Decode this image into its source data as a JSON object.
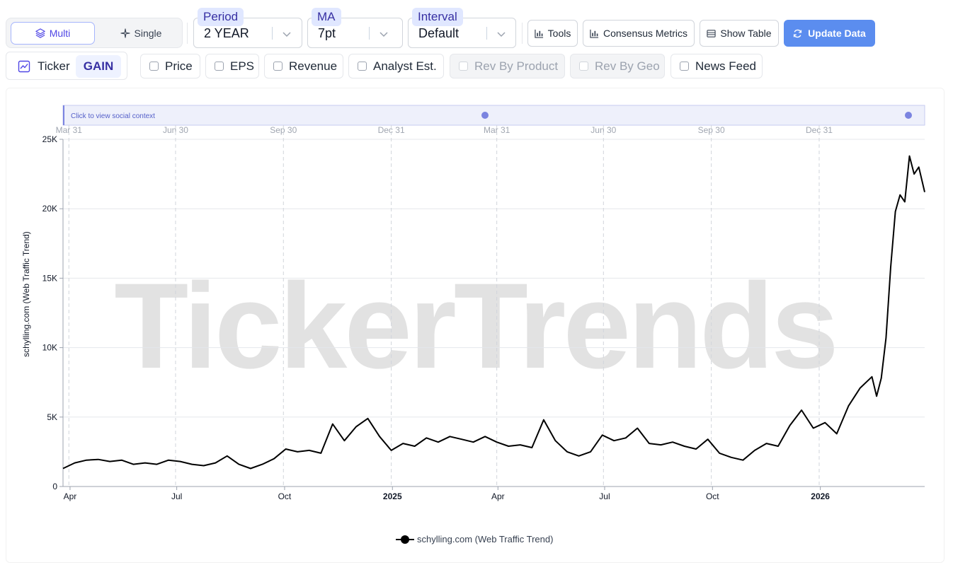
{
  "toolbar": {
    "mode": {
      "multi_label": "Multi",
      "single_label": "Single"
    },
    "period": {
      "tag": "Period",
      "value": "2 YEAR"
    },
    "ma": {
      "tag": "MA",
      "value": "7pt"
    },
    "interval": {
      "tag": "Interval",
      "value": "Default"
    },
    "tools_label": "Tools",
    "consensus_label": "Consensus Metrics",
    "show_table_label": "Show Table",
    "update_label": "Update Data"
  },
  "ticker": {
    "label": "Ticker",
    "value": "GAIN"
  },
  "overlays": [
    {
      "label": "Price",
      "checked": false,
      "disabled": false
    },
    {
      "label": "EPS",
      "checked": false,
      "disabled": false
    },
    {
      "label": "Revenue",
      "checked": false,
      "disabled": false
    },
    {
      "label": "Analyst Est.",
      "checked": false,
      "disabled": false
    },
    {
      "label": "Rev By Product",
      "checked": false,
      "disabled": true
    },
    {
      "label": "Rev By Geo",
      "checked": false,
      "disabled": true
    },
    {
      "label": "News Feed",
      "checked": false,
      "disabled": false
    }
  ],
  "colors": {
    "accent": "#5b8def",
    "line": "#000000",
    "social_bar": "#eef0fb",
    "social_dot": "#7b84e0",
    "watermark": "#e2e2e2"
  },
  "chart_data": {
    "type": "line",
    "watermark": "TickerTrends",
    "social_bar_label": "Click to view social context",
    "top_ticks": [
      "Mar 31",
      "Jun 30",
      "Sep 30",
      "Dec 31",
      "Mar 31",
      "Jun 30",
      "Sep 30",
      "Dec 31"
    ],
    "x_ticks": [
      {
        "label": "Apr",
        "date": "2024-04-01",
        "bold": false
      },
      {
        "label": "Jul",
        "date": "2024-07-01",
        "bold": false
      },
      {
        "label": "Oct",
        "date": "2024-10-01",
        "bold": false
      },
      {
        "label": "2025",
        "date": "2025-01-01",
        "bold": true
      },
      {
        "label": "Apr",
        "date": "2025-04-01",
        "bold": false
      },
      {
        "label": "Jul",
        "date": "2025-07-01",
        "bold": false
      },
      {
        "label": "Oct",
        "date": "2025-10-01",
        "bold": false
      },
      {
        "label": "2026",
        "date": "2026-01-01",
        "bold": true
      }
    ],
    "gridline_dates": [
      "2024-03-31",
      "2024-06-30",
      "2024-09-30",
      "2024-12-31",
      "2025-03-31",
      "2025-06-30",
      "2025-09-30",
      "2025-12-31"
    ],
    "y_ticks": [
      {
        "label": "0",
        "value": 0
      },
      {
        "label": "5K",
        "value": 5000
      },
      {
        "label": "10K",
        "value": 10000
      },
      {
        "label": "15K",
        "value": 15000
      },
      {
        "label": "20K",
        "value": 20000
      },
      {
        "label": "25K",
        "value": 25000
      }
    ],
    "ylim": [
      0,
      25000
    ],
    "xlim": [
      "2024-03-26",
      "2026-03-31"
    ],
    "ylabel": "schylling.com  (Web Traffic Trend)",
    "grid": true,
    "legend_position": "bottom-center",
    "series": [
      {
        "name": "schylling.com  (Web Traffic Trend)",
        "points": [
          [
            "2024-03-26",
            1300
          ],
          [
            "2024-04-05",
            1700
          ],
          [
            "2024-04-15",
            1900
          ],
          [
            "2024-04-25",
            1950
          ],
          [
            "2024-05-05",
            1800
          ],
          [
            "2024-05-15",
            1900
          ],
          [
            "2024-05-25",
            1600
          ],
          [
            "2024-06-04",
            1700
          ],
          [
            "2024-06-14",
            1600
          ],
          [
            "2024-06-24",
            1900
          ],
          [
            "2024-07-04",
            1800
          ],
          [
            "2024-07-14",
            1600
          ],
          [
            "2024-07-24",
            1500
          ],
          [
            "2024-08-03",
            1700
          ],
          [
            "2024-08-13",
            2200
          ],
          [
            "2024-08-23",
            1600
          ],
          [
            "2024-09-02",
            1300
          ],
          [
            "2024-09-12",
            1600
          ],
          [
            "2024-09-22",
            2000
          ],
          [
            "2024-10-02",
            2700
          ],
          [
            "2024-10-12",
            2500
          ],
          [
            "2024-10-22",
            2600
          ],
          [
            "2024-11-01",
            2400
          ],
          [
            "2024-11-11",
            4500
          ],
          [
            "2024-11-21",
            3300
          ],
          [
            "2024-12-01",
            4300
          ],
          [
            "2024-12-11",
            4900
          ],
          [
            "2024-12-21",
            3600
          ],
          [
            "2024-12-31",
            2600
          ],
          [
            "2025-01-10",
            3100
          ],
          [
            "2025-01-20",
            2900
          ],
          [
            "2025-01-30",
            3500
          ],
          [
            "2025-02-09",
            3200
          ],
          [
            "2025-02-19",
            3600
          ],
          [
            "2025-03-01",
            3400
          ],
          [
            "2025-03-11",
            3200
          ],
          [
            "2025-03-21",
            3600
          ],
          [
            "2025-03-31",
            3200
          ],
          [
            "2025-04-10",
            2900
          ],
          [
            "2025-04-20",
            3000
          ],
          [
            "2025-04-30",
            2800
          ],
          [
            "2025-05-10",
            4800
          ],
          [
            "2025-05-20",
            3300
          ],
          [
            "2025-05-30",
            2500
          ],
          [
            "2025-06-09",
            2200
          ],
          [
            "2025-06-19",
            2500
          ],
          [
            "2025-06-29",
            3700
          ],
          [
            "2025-07-09",
            3300
          ],
          [
            "2025-07-19",
            3500
          ],
          [
            "2025-07-29",
            4200
          ],
          [
            "2025-08-08",
            3100
          ],
          [
            "2025-08-18",
            3000
          ],
          [
            "2025-08-28",
            3200
          ],
          [
            "2025-09-07",
            2900
          ],
          [
            "2025-09-17",
            2700
          ],
          [
            "2025-09-27",
            3400
          ],
          [
            "2025-10-07",
            2400
          ],
          [
            "2025-10-17",
            2100
          ],
          [
            "2025-10-27",
            1900
          ],
          [
            "2025-11-06",
            2600
          ],
          [
            "2025-11-16",
            3100
          ],
          [
            "2025-11-26",
            2900
          ],
          [
            "2025-12-06",
            4400
          ],
          [
            "2025-12-16",
            5500
          ],
          [
            "2025-12-26",
            4200
          ],
          [
            "2026-01-05",
            4600
          ],
          [
            "2026-01-15",
            3800
          ],
          [
            "2026-01-25",
            5800
          ],
          [
            "2026-02-04",
            7100
          ],
          [
            "2026-02-14",
            7900
          ],
          [
            "2026-02-18",
            6500
          ],
          [
            "2026-02-22",
            7800
          ],
          [
            "2026-02-26",
            10700
          ],
          [
            "2026-03-02",
            15800
          ],
          [
            "2026-03-06",
            19800
          ],
          [
            "2026-03-10",
            21000
          ],
          [
            "2026-03-14",
            20500
          ],
          [
            "2026-03-18",
            23800
          ],
          [
            "2026-03-22",
            22500
          ],
          [
            "2026-03-26",
            23000
          ],
          [
            "2026-03-31",
            21200
          ]
        ]
      }
    ]
  }
}
